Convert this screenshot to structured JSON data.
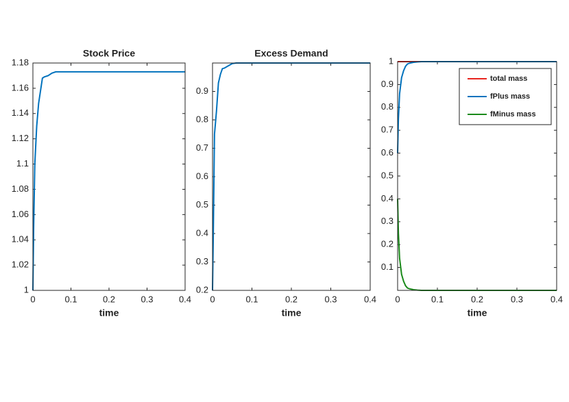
{
  "chart_data": [
    {
      "type": "line",
      "title": "Stock Price",
      "xlabel": "time",
      "x": [
        0,
        0.002,
        0.005,
        0.01,
        0.015,
        0.02,
        0.025,
        0.03,
        0.04,
        0.05,
        0.06,
        0.08,
        0.1,
        0.2,
        0.3,
        0.4
      ],
      "series": [
        {
          "name": "Stock Price",
          "color": "#0072bd",
          "values": [
            1,
            1.05,
            1.1,
            1.13,
            1.148,
            1.158,
            1.168,
            1.169,
            1.17,
            1.172,
            1.173,
            1.173,
            1.173,
            1.173,
            1.173,
            1.173
          ]
        }
      ],
      "xlim": [
        0,
        0.4
      ],
      "ylim": [
        1,
        1.18
      ],
      "xticks": [
        0,
        0.1,
        0.2,
        0.3,
        0.4
      ],
      "yticks": [
        1,
        1.02,
        1.04,
        1.06,
        1.08,
        1.1,
        1.12,
        1.14,
        1.16,
        1.18
      ]
    },
    {
      "type": "line",
      "title": "Excess Demand",
      "xlabel": "time",
      "x": [
        0,
        0.002,
        0.005,
        0.01,
        0.015,
        0.02,
        0.025,
        0.03,
        0.04,
        0.05,
        0.06,
        0.08,
        0.1,
        0.2,
        0.3,
        0.4
      ],
      "series": [
        {
          "name": "Excess Demand",
          "color": "#0072bd",
          "values": [
            0.2,
            0.4,
            0.75,
            0.83,
            0.93,
            0.96,
            0.98,
            0.982,
            0.99,
            0.998,
            1,
            1,
            1,
            1,
            1,
            1
          ]
        }
      ],
      "xlim": [
        0,
        0.4
      ],
      "ylim": [
        0.2,
        1
      ],
      "xticks": [
        0,
        0.1,
        0.2,
        0.3,
        0.4
      ],
      "yticks": [
        0.2,
        0.3,
        0.4,
        0.5,
        0.6,
        0.7,
        0.8,
        0.9
      ]
    },
    {
      "type": "line",
      "xlabel": "time",
      "x": [
        0,
        0.002,
        0.005,
        0.01,
        0.015,
        0.02,
        0.025,
        0.03,
        0.04,
        0.05,
        0.06,
        0.08,
        0.1,
        0.2,
        0.3,
        0.4
      ],
      "series": [
        {
          "name": "total mass",
          "color": "#e8231d",
          "values": [
            1,
            1,
            1,
            1,
            1,
            1,
            1,
            1,
            1,
            1,
            1,
            1,
            1,
            1,
            1,
            1
          ]
        },
        {
          "name": "fPlus mass",
          "color": "#0072bd",
          "values": [
            0.6,
            0.75,
            0.86,
            0.93,
            0.96,
            0.98,
            0.99,
            0.993,
            0.997,
            0.999,
            1,
            1,
            1,
            1,
            1,
            1
          ]
        },
        {
          "name": "fMinus mass",
          "color": "#1a8a1a",
          "values": [
            0.4,
            0.25,
            0.14,
            0.07,
            0.04,
            0.02,
            0.01,
            0.007,
            0.003,
            0.001,
            0,
            0,
            0,
            0,
            0,
            0
          ]
        }
      ],
      "xlim": [
        0,
        0.4
      ],
      "ylim": [
        0,
        1
      ],
      "xticks": [
        0,
        0.1,
        0.2,
        0.3,
        0.4
      ],
      "yticks": [
        0.1,
        0.2,
        0.3,
        0.4,
        0.5,
        0.6,
        0.7,
        0.8,
        0.9,
        1
      ],
      "legend": "upper right"
    }
  ]
}
